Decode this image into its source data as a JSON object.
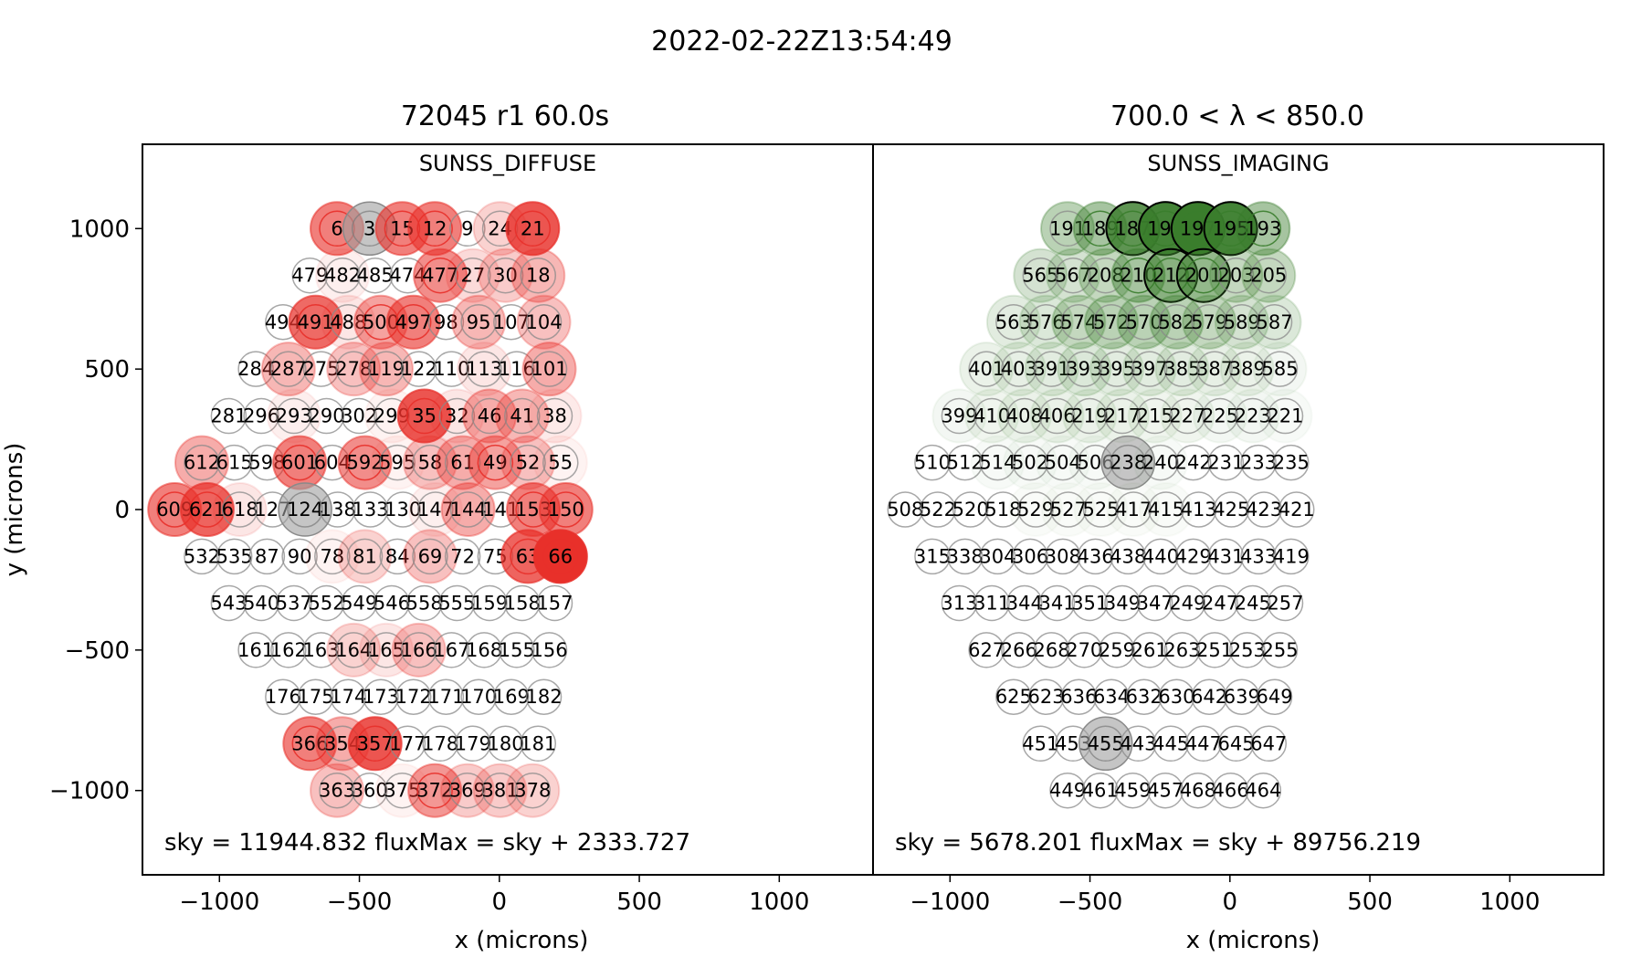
{
  "figure": {
    "suptitle": "2022-02-22Z13:54:49",
    "left_title": "72045 r1  60.0s",
    "right_title": "700.0 < λ < 850.0"
  },
  "chart_data": [
    {
      "type": "scatter",
      "panel": "left",
      "title": "72045 r1  60.0s",
      "subtitle": "SUNSS_DIFFUSE",
      "annotation": "sky = 11944.832  fluxMax = sky + 2333.727",
      "xlabel": "x (microns)",
      "ylabel": "y (microns)",
      "xlim": [
        -1275,
        1335
      ],
      "ylim": [
        -1300,
        1300
      ],
      "xticks": [
        -1000,
        -500,
        0,
        500,
        1000
      ],
      "yticks": [
        -1000,
        -500,
        0,
        500,
        1000
      ],
      "xtick_labels": [
        "−1000",
        "−500",
        "0",
        "500",
        "1000"
      ],
      "ytick_labels": [
        "−1000",
        "−500",
        "0",
        "500",
        "1000"
      ],
      "color": "#e8302a",
      "rows": [
        {
          "y": 1000,
          "x0": -580,
          "ids": [
            6,
            3,
            15,
            12,
            9,
            24,
            21
          ],
          "levels": [
            0.62,
            -1,
            0.62,
            0.62,
            0,
            0.22,
            0.82
          ]
        },
        {
          "y": 833,
          "x0": -677,
          "ids": [
            479,
            482,
            485,
            474,
            477,
            27,
            30,
            18
          ],
          "levels": [
            0,
            0.08,
            0,
            0,
            0.55,
            0.18,
            0.25,
            0.35
          ]
        },
        {
          "y": 667,
          "x0": -773,
          "ids": [
            494,
            491,
            488,
            500,
            497,
            98,
            95,
            107,
            104
          ],
          "levels": [
            0,
            0.72,
            0.12,
            0.45,
            0.62,
            0,
            0.35,
            0,
            0.3
          ]
        },
        {
          "y": 500,
          "x0": -870,
          "ids": [
            284,
            287,
            275,
            278,
            119,
            122,
            110,
            113,
            116,
            101
          ],
          "levels": [
            0,
            0.35,
            0,
            0.3,
            0.35,
            0,
            0,
            0.12,
            0,
            0.4
          ]
        },
        {
          "y": 333,
          "x0": -967,
          "ids": [
            281,
            296,
            293,
            290,
            302,
            299,
            35,
            32,
            46,
            41,
            38
          ],
          "levels": [
            0,
            0,
            0.08,
            0,
            0,
            0.06,
            0.82,
            0.12,
            0.4,
            0.35,
            0.1
          ]
        },
        {
          "y": 167,
          "x0": -1063,
          "ids": [
            612,
            615,
            598,
            601,
            604,
            592,
            595,
            58,
            61,
            49,
            52,
            55
          ],
          "levels": [
            0.4,
            0,
            0,
            0.62,
            0,
            0.55,
            0.06,
            0.3,
            0.4,
            0.45,
            0.3,
            0.06
          ]
        },
        {
          "y": 0,
          "x0": -1160,
          "ids": [
            609,
            621,
            618,
            127,
            124,
            138,
            133,
            130,
            147,
            144,
            141,
            153,
            150
          ],
          "levels": [
            0.62,
            0.75,
            0.12,
            0,
            -1,
            0,
            0,
            0,
            0.08,
            0.4,
            0,
            0.62,
            0.62
          ]
        },
        {
          "y": -167,
          "x0": -1063,
          "ids": [
            532,
            535,
            87,
            90,
            78,
            81,
            84,
            69,
            72,
            75,
            63,
            66
          ],
          "levels": [
            0,
            0,
            0,
            0,
            0.06,
            0.22,
            0,
            0.3,
            0,
            0,
            0.75,
            1.0
          ]
        },
        {
          "y": -333,
          "x0": -967,
          "ids": [
            543,
            540,
            537,
            552,
            549,
            546,
            558,
            555,
            159,
            158,
            157
          ],
          "levels": [
            0,
            0,
            0,
            0,
            0,
            0,
            0,
            0,
            0,
            0,
            0
          ]
        },
        {
          "y": -500,
          "x0": -870,
          "ids": [
            161,
            162,
            163,
            164,
            165,
            166,
            167,
            168,
            155,
            156
          ],
          "levels": [
            0,
            0,
            0,
            0.22,
            0.12,
            0.3,
            0,
            0,
            0,
            0
          ]
        },
        {
          "y": -667,
          "x0": -773,
          "ids": [
            176,
            175,
            174,
            173,
            172,
            171,
            170,
            169,
            182
          ],
          "levels": [
            0,
            0,
            0,
            0,
            0,
            0,
            0,
            0,
            0
          ]
        },
        {
          "y": -833,
          "x0": -677,
          "ids": [
            366,
            354,
            357,
            177,
            178,
            179,
            180,
            181
          ],
          "levels": [
            0.62,
            0.4,
            0.82,
            0,
            0,
            0,
            0,
            0
          ]
        },
        {
          "y": -1000,
          "x0": -580,
          "ids": [
            363,
            360,
            375,
            372,
            369,
            381,
            378
          ],
          "levels": [
            0.3,
            0,
            0.06,
            0.5,
            0.25,
            0.25,
            0.22
          ]
        }
      ]
    },
    {
      "type": "scatter",
      "panel": "right",
      "title": "700.0 < λ < 850.0",
      "subtitle": "SUNSS_IMAGING",
      "annotation": "sky = 5678.201  fluxMax = sky + 89756.219",
      "xlabel": "x (microns)",
      "ylabel": "",
      "xlim": [
        -1275,
        1335
      ],
      "ylim": [
        -1300,
        1300
      ],
      "xticks": [
        -1000,
        -500,
        0,
        500,
        1000
      ],
      "xtick_labels": [
        "−1000",
        "−500",
        "0",
        "500",
        "1000"
      ],
      "color": "#3a7d2c",
      "rows": [
        {
          "y": 1000,
          "x0": -580,
          "ids": [
            191,
            189,
            187,
            199,
            197,
            195,
            193
          ],
          "levels": [
            0.35,
            0.45,
            0.82,
            0.95,
            1.0,
            0.95,
            0.45
          ]
        },
        {
          "y": 833,
          "x0": -677,
          "ids": [
            565,
            567,
            208,
            210,
            212,
            201,
            203,
            205
          ],
          "levels": [
            0.22,
            0.22,
            0.3,
            0.45,
            0.6,
            0.55,
            0.3,
            0.3
          ]
        },
        {
          "y": 667,
          "x0": -773,
          "ids": [
            563,
            576,
            574,
            572,
            570,
            582,
            579,
            589,
            587
          ],
          "levels": [
            0.15,
            0.18,
            0.3,
            0.35,
            0.35,
            0.35,
            0.3,
            0.22,
            0.18
          ]
        },
        {
          "y": 500,
          "x0": -870,
          "ids": [
            401,
            403,
            391,
            393,
            395,
            397,
            385,
            387,
            389,
            585
          ],
          "levels": [
            0.1,
            0.12,
            0.15,
            0.18,
            0.15,
            0.15,
            0.15,
            0.12,
            0.1,
            0.06
          ]
        },
        {
          "y": 333,
          "x0": -967,
          "ids": [
            399,
            410,
            408,
            406,
            219,
            217,
            215,
            227,
            225,
            223,
            221
          ],
          "levels": [
            0.06,
            0.08,
            0.1,
            0.1,
            0.1,
            0.1,
            0.08,
            0.08,
            0.06,
            0.06,
            0.04
          ]
        },
        {
          "y": 167,
          "x0": -1063,
          "ids": [
            510,
            512,
            514,
            502,
            504,
            506,
            238,
            240,
            242,
            231,
            233,
            235
          ],
          "levels": [
            0,
            0,
            0.04,
            0.04,
            0.04,
            0.04,
            -1,
            0.04,
            0,
            0,
            0,
            0
          ]
        },
        {
          "y": 0,
          "x0": -1160,
          "ids": [
            508,
            522,
            520,
            518,
            529,
            527,
            525,
            417,
            415,
            413,
            425,
            423,
            421
          ],
          "levels": [
            0,
            0,
            0,
            0,
            0.03,
            0.03,
            0.03,
            0.03,
            0.03,
            0,
            0,
            0,
            0
          ]
        },
        {
          "y": -167,
          "x0": -1063,
          "ids": [
            315,
            338,
            304,
            306,
            308,
            436,
            438,
            440,
            429,
            431,
            433,
            419
          ],
          "levels": [
            0,
            0,
            0,
            0,
            0,
            0,
            0,
            0,
            0,
            0,
            0,
            0
          ]
        },
        {
          "y": -333,
          "x0": -967,
          "ids": [
            313,
            311,
            344,
            341,
            351,
            349,
            347,
            249,
            247,
            245,
            257
          ],
          "levels": [
            0,
            0,
            0,
            0,
            0,
            0,
            0,
            0,
            0,
            0,
            0
          ]
        },
        {
          "y": -500,
          "x0": -870,
          "ids": [
            627,
            266,
            268,
            270,
            259,
            261,
            263,
            251,
            253,
            255
          ],
          "levels": [
            0,
            0,
            0,
            0,
            0,
            0,
            0,
            0,
            0,
            0
          ]
        },
        {
          "y": -667,
          "x0": -773,
          "ids": [
            625,
            623,
            636,
            634,
            632,
            630,
            642,
            639,
            649
          ],
          "levels": [
            0,
            0,
            0,
            0,
            0,
            0,
            0,
            0,
            0
          ]
        },
        {
          "y": -833,
          "x0": -677,
          "ids": [
            451,
            453,
            455,
            443,
            445,
            447,
            645,
            647
          ],
          "levels": [
            0,
            0,
            -1,
            0,
            0,
            0,
            0,
            0
          ]
        },
        {
          "y": -1000,
          "x0": -580,
          "ids": [
            449,
            461,
            459,
            457,
            468,
            466,
            464
          ],
          "levels": [
            0,
            0,
            0,
            0,
            0,
            0,
            0
          ]
        }
      ]
    }
  ]
}
